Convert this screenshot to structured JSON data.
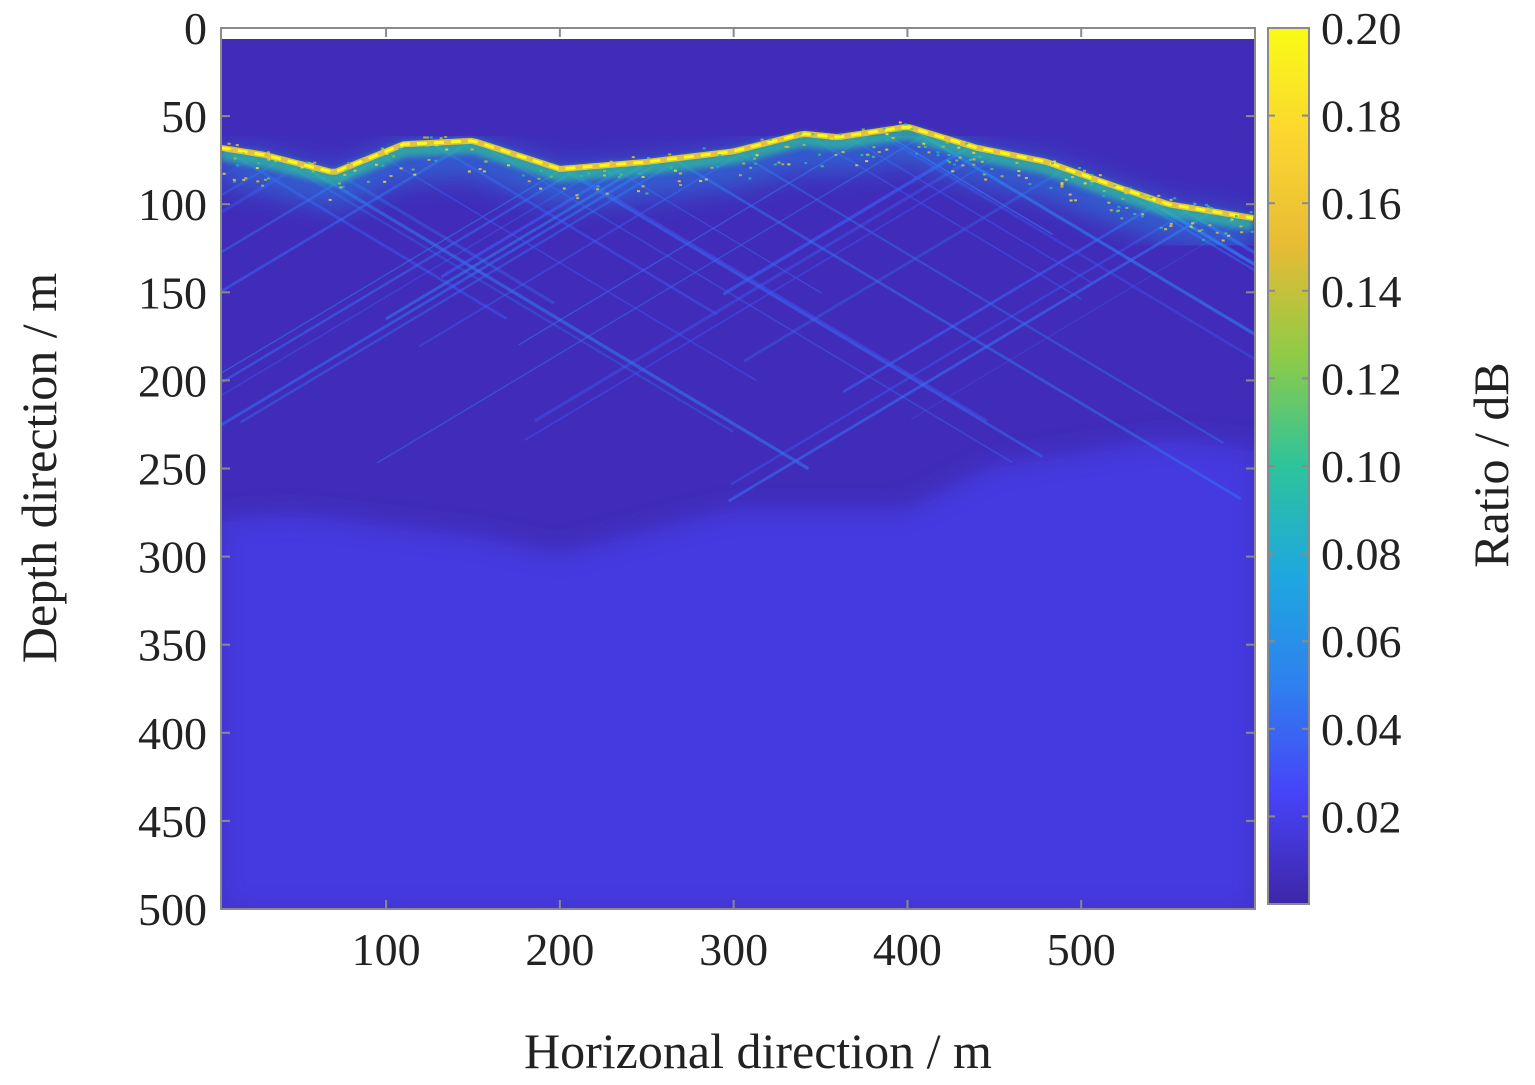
{
  "chart_data": {
    "type": "heatmap",
    "title": "",
    "xlabel": "Horizonal direction / m",
    "ylabel": "Depth direction / m",
    "colorbar_label": "Ratio / dB",
    "xlim": [
      5,
      600
    ],
    "ylim": [
      0,
      500
    ],
    "y_reversed": true,
    "x_ticks": [
      100,
      200,
      300,
      400,
      500
    ],
    "x_tick_labels": [
      "100",
      "200",
      "300",
      "400",
      "500"
    ],
    "y_ticks": [
      0,
      50,
      100,
      150,
      200,
      250,
      300,
      350,
      400,
      450,
      500
    ],
    "y_tick_labels": [
      "0",
      "50",
      "100",
      "150",
      "200",
      "250",
      "300",
      "350",
      "400",
      "450",
      "500"
    ],
    "color_range": [
      0,
      0.2
    ],
    "colorbar_ticks": [
      0.02,
      0.04,
      0.06,
      0.08,
      0.1,
      0.12,
      0.14,
      0.16,
      0.18,
      0.2
    ],
    "colorbar_tick_labels": [
      "0.02",
      "0.04",
      "0.06",
      "0.08",
      "0.10",
      "0.12",
      "0.14",
      "0.16",
      "0.18",
      "0.20"
    ],
    "colormap": "parula",
    "colormap_stops": [
      "#3e26a8",
      "#4743f8",
      "#2f80ef",
      "#1ea8df",
      "#2dc39b",
      "#8ecb46",
      "#e7bb35",
      "#fbd630",
      "#f9fb15"
    ],
    "grid": false,
    "interface_surface": {
      "x": [
        5,
        30,
        70,
        110,
        150,
        200,
        250,
        300,
        340,
        360,
        400,
        440,
        480,
        520,
        550,
        600
      ],
      "y": [
        68,
        72,
        82,
        66,
        64,
        80,
        76,
        70,
        60,
        62,
        56,
        68,
        76,
        90,
        100,
        108
      ],
      "peak_value": 0.2
    },
    "deep_layer_boundary": {
      "x": [
        5,
        50,
        150,
        200,
        300,
        400,
        450,
        550,
        600
      ],
      "y": [
        280,
        278,
        290,
        300,
        275,
        275,
        250,
        235,
        240
      ],
      "value": 0.025
    },
    "background_value": 0.005
  }
}
